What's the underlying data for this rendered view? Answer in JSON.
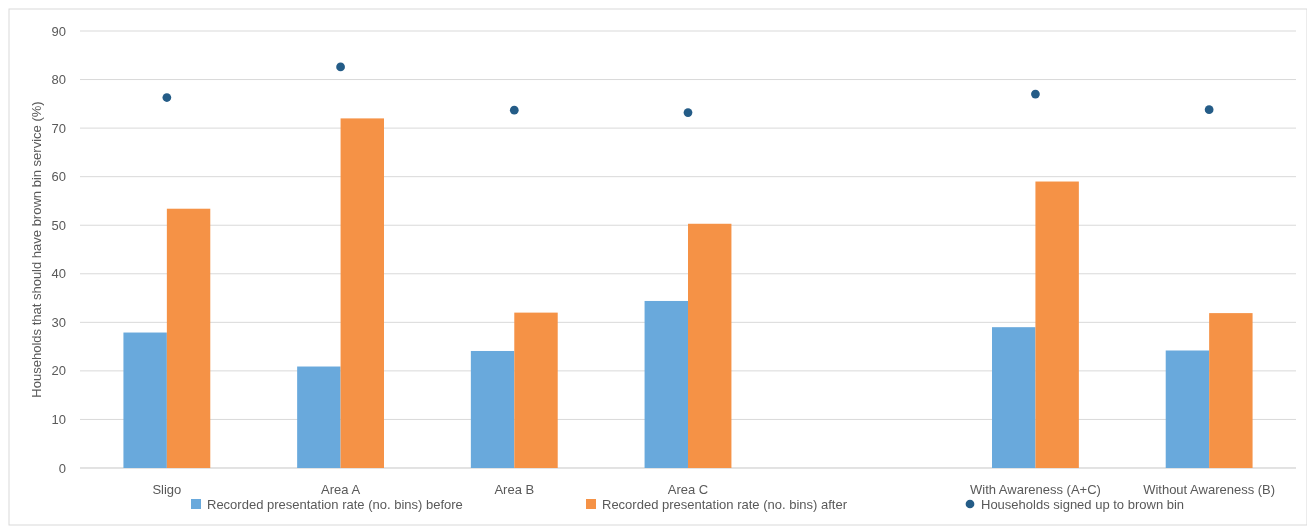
{
  "chart_data": {
    "type": "bar",
    "ylabel": "Households that should have brown bin service (%)",
    "categories": [
      "Sligo",
      "Area A",
      "Area B",
      "Area C",
      null,
      "With Awareness (A+C)",
      "Without Awareness (B)"
    ],
    "series": [
      {
        "name": "Recorded presentation rate (no. bins) before",
        "color": "#69a9dc",
        "values": [
          27.9,
          20.9,
          24.1,
          34.4,
          null,
          29.0,
          24.2
        ]
      },
      {
        "name": "Recorded presentation rate (no. bins) after",
        "color": "#f59246",
        "values": [
          53.4,
          72.0,
          32.0,
          50.3,
          null,
          59.0,
          31.9
        ]
      },
      {
        "name": "Households signed up to brown bin",
        "type": "scatter",
        "color": "#245c87",
        "values": [
          76.3,
          82.6,
          73.7,
          73.2,
          null,
          77.0,
          73.8
        ]
      }
    ],
    "ylim": [
      0,
      90
    ],
    "yticks": [
      0,
      10,
      20,
      30,
      40,
      50,
      60,
      70,
      80,
      90
    ],
    "grid": "y",
    "legend": "bottom",
    "marker": "circle"
  }
}
